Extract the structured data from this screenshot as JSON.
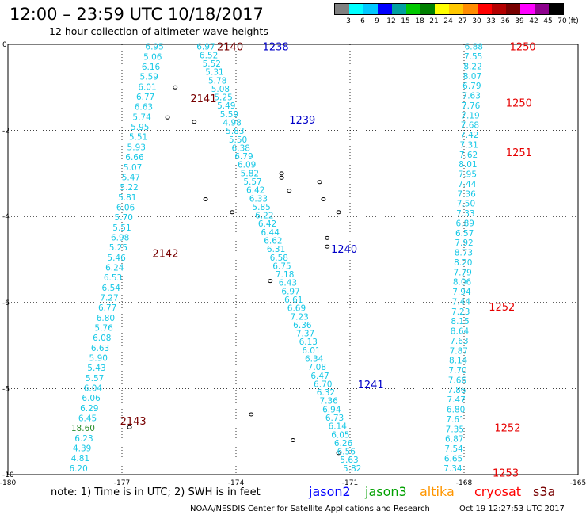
{
  "title": "12:00 – 23:59 UTC 10/18/2017",
  "subtitle": "12 hour collection of altimeter wave heights",
  "legend": {
    "unit": "(ft)",
    "labels": [
      "3",
      "6",
      "9",
      "12",
      "15",
      "18",
      "21",
      "24",
      "27",
      "30",
      "33",
      "36",
      "39",
      "42",
      "45",
      "70"
    ],
    "colors": [
      "#808080",
      "#00ffff",
      "#00c8ff",
      "#0000ff",
      "#00a0a0",
      "#00c800",
      "#008000",
      "#ffff00",
      "#ffc800",
      "#ff8c00",
      "#ff0000",
      "#b40000",
      "#780000",
      "#ff00ff",
      "#8c008c",
      "#000000"
    ]
  },
  "axes": {
    "x_ticks": [
      "-180",
      "-177",
      "-174",
      "-171",
      "-168",
      "-165"
    ],
    "y_ticks": [
      "0",
      "-2",
      "-4",
      "-6",
      "-8",
      "-10"
    ]
  },
  "map_data": {
    "type": "altimeter_tracks",
    "x_range": [
      -180,
      -165
    ],
    "y_range": [
      -10,
      0
    ],
    "tracks": [
      {
        "satellite": "jason3_pass1",
        "start": [
          -175.9,
          -0.05
        ],
        "end": [
          -177.9,
          -9.85
        ],
        "values": [
          "6.95",
          "5.06",
          "6.16",
          "5.59",
          "6.01",
          "6.77",
          "6.63",
          "5.74",
          "5.95",
          "5.51",
          "5.93",
          "6.66",
          "5.07",
          "5.47",
          "5.22",
          "5.81",
          "6.06",
          "5.70",
          "5.51",
          "6.98",
          "5.25",
          "5.46",
          "6.24",
          "6.53",
          "6.54",
          "7.27",
          "6.77",
          "6.80",
          "5.76",
          "6.08",
          "6.63",
          "5.90",
          "5.43",
          "5.57",
          "6.04",
          "6.06",
          "6.29",
          "6.45",
          "18.60",
          "6.23",
          "4.39",
          "4.81",
          "6.20"
        ],
        "highlight": [
          "18.60"
        ]
      },
      {
        "satellite": "jason2_pass2",
        "start": [
          -174.55,
          -0.05
        ],
        "end": [
          -170.7,
          -9.85
        ],
        "values": [
          "6.97",
          "6.52",
          "5.52",
          "5.31",
          "5.78",
          "5.08",
          "5.25",
          "5.49",
          "5.59",
          "4.98",
          "5.83",
          "5.50",
          "6.38",
          "6.79",
          "6.09",
          "5.82",
          "5.57",
          "6.42",
          "6.33",
          "5.85",
          "6.22",
          "6.42",
          "6.44",
          "6.62",
          "6.31",
          "6.58",
          "6.75",
          "7.18",
          "6.43",
          "6.97",
          "6.61",
          "6.69",
          "7.23",
          "6.36",
          "7.37",
          "6.13",
          "6.01",
          "6.34",
          "7.08",
          "6.47",
          "6.70",
          "6.32",
          "7.36",
          "6.94",
          "6.73",
          "6.14",
          "6.05",
          "6.26",
          "6.56",
          "5.63",
          "5.82"
        ]
      },
      {
        "satellite": "cryosat_pass3",
        "start": [
          -167.5,
          -0.05
        ],
        "end": [
          -168.05,
          -9.85
        ],
        "values": [
          "6.88",
          "7.55",
          "8.22",
          "8.07",
          "6.79",
          "7.63",
          "7.76",
          "7.19",
          "7.68",
          "7.42",
          "7.31",
          "7.62",
          "8.01",
          "7.95",
          "7.44",
          "7.36",
          "7.50",
          "7.33",
          "6.89",
          "6.57",
          "7.92",
          "8.73",
          "8.20",
          "7.79",
          "8.06",
          "7.94",
          "7.44",
          "7.23",
          "8.15",
          "8.64",
          "7.63",
          "7.87",
          "8.14",
          "7.70",
          "7.66",
          "7.86",
          "7.47",
          "6.80",
          "7.61",
          "7.35",
          "6.87",
          "7.54",
          "6.65",
          "7.34"
        ]
      }
    ],
    "pass_labels": [
      {
        "text": "2140",
        "sat": "jason3",
        "lon": -174.5,
        "lat": -0.05
      },
      {
        "text": "2141",
        "sat": "jason3",
        "lon": -175.2,
        "lat": -1.25
      },
      {
        "text": "2142",
        "sat": "jason3",
        "lon": -176.2,
        "lat": -4.85
      },
      {
        "text": "2143",
        "sat": "jason3",
        "lon": -177.05,
        "lat": -8.75
      },
      {
        "text": "1238",
        "sat": "jason2",
        "lon": -173.3,
        "lat": -0.05
      },
      {
        "text": "1239",
        "sat": "jason2",
        "lon": -172.6,
        "lat": -1.75
      },
      {
        "text": "1240",
        "sat": "jason2",
        "lon": -171.5,
        "lat": -4.75
      },
      {
        "text": "1241",
        "sat": "jason2",
        "lon": -170.8,
        "lat": -7.9
      },
      {
        "text": "1250",
        "sat": "cryosat",
        "lon": -166.8,
        "lat": -0.05
      },
      {
        "text": "1250",
        "sat": "cryosat",
        "lon": -166.9,
        "lat": -1.35
      },
      {
        "text": "1251",
        "sat": "cryosat",
        "lon": -166.9,
        "lat": -2.5
      },
      {
        "text": "1252",
        "sat": "cryosat",
        "lon": -167.35,
        "lat": -6.1
      },
      {
        "text": "1252",
        "sat": "cryosat",
        "lon": -167.2,
        "lat": -8.9
      },
      {
        "text": "1253",
        "sat": "cryosat",
        "lon": -167.25,
        "lat": -9.95
      }
    ],
    "pass_colors": {
      "jason3": "#780000",
      "jason2": "#0000c8",
      "cryosat": "#e60000"
    },
    "islands": [
      [
        -175.6,
        -1.0
      ],
      [
        -175.8,
        -1.7
      ],
      [
        -175.1,
        -1.8
      ],
      [
        -174.8,
        -3.6
      ],
      [
        -172.6,
        -3.4
      ],
      [
        -172.8,
        -3.1
      ],
      [
        -171.7,
        -3.6
      ],
      [
        -171.3,
        -3.9
      ],
      [
        -171.6,
        -4.5
      ],
      [
        -171.6,
        -4.7
      ],
      [
        -172.8,
        -3.0
      ],
      [
        -171.8,
        -3.2
      ],
      [
        -174.1,
        -3.9
      ],
      [
        -173.1,
        -5.5
      ],
      [
        -176.8,
        -8.9
      ],
      [
        -173.6,
        -8.6
      ],
      [
        -172.5,
        -9.2
      ],
      [
        -171.3,
        -9.5
      ]
    ]
  },
  "notes": "note:  1) Time is in UTC;  2) SWH is in feet",
  "satellites": [
    {
      "name": "jason2",
      "color": "#0000ff"
    },
    {
      "name": "jason3",
      "color": "#00a000"
    },
    {
      "name": "altika",
      "color": "#ff9600"
    },
    {
      "name": "cryosat",
      "color": "#ff0000"
    },
    {
      "name": "s3a",
      "color": "#780000"
    }
  ],
  "credit": "NOAA/NESDIS Center for Satellite Applications and Research",
  "timestamp": "Oct 19 12:27:53 UTC 2017"
}
